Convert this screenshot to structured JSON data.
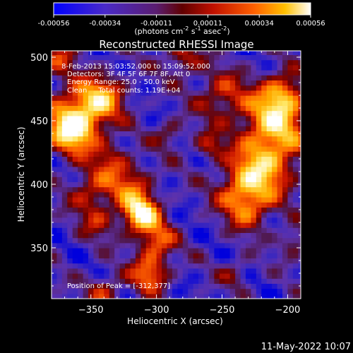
{
  "colorbar": {
    "ticks": [
      "-0.00056",
      "-0.00034",
      "-0.00011",
      "0.00011",
      "0.00034",
      "0.00056"
    ],
    "units_main": "(photons cm",
    "units_exp1": "-2",
    "units_mid": " s",
    "units_exp2": "-1",
    "units_tail": " asec",
    "units_exp3": "-2",
    "units_close": ")"
  },
  "chart_data": {
    "type": "heatmap",
    "title": "Reconstructed RHESSI Image",
    "xlabel": "Heliocentric X (arcsec)",
    "ylabel": "Heliocentric Y (arcsec)",
    "xlim": [
      -380,
      -190
    ],
    "ylim": [
      310,
      505
    ],
    "xticks": [
      -350,
      -300,
      -250,
      -200
    ],
    "yticks": [
      350,
      400,
      450,
      500
    ],
    "xticklabels": [
      "−350",
      "−300",
      "−250",
      "−200"
    ],
    "yticklabels": [
      "350",
      "400",
      "450",
      "500"
    ],
    "colorbar_range": [
      -0.00056,
      0.00056
    ],
    "colormap": [
      "#0000ff",
      "#3a1f9e",
      "#5a2dbf",
      "#8a1020",
      "#ff3c00",
      "#ffa000",
      "#ffffff"
    ],
    "annotations": [
      " 8-Feb-2013 15:03:52.000 to 15:09:52.000",
      "Detectors: 3F 4F 5F 6F 7F 8F, Att 0",
      "Energy Range: 25.0 - 50.0 keV",
      "Clean     Total counts: 1.19E+04"
    ],
    "peak_label": "Position of Peak = [-312,377]",
    "peak_position": [
      -312,
      377
    ]
  },
  "footer": {
    "timestamp": "11-May-2022 10:07"
  }
}
